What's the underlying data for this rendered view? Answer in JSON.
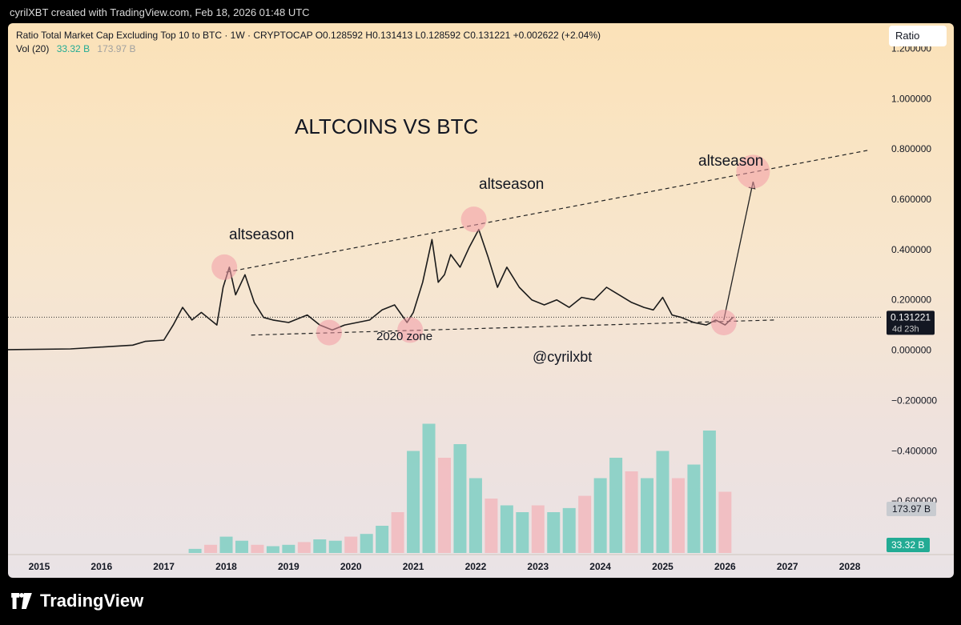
{
  "header": {
    "credit": "cyrilXBT created with TradingView.com, Feb 18, 2026 01:48 UTC"
  },
  "legend": {
    "line1": "Ratio Total Market Cap Excluding Top 10 to BTC · 1W · CRYPTOCAP  O0.128592  H0.131413  L0.128592  C0.131221  +0.002622 (+2.04%)",
    "vol_label": "Vol (20)",
    "vol_value": "33.32 B",
    "vol_ma": "173.97 B"
  },
  "scale_button": "Ratio",
  "brand": {
    "name": "TradingView"
  },
  "colors": {
    "up": "#26a69a",
    "down": "#ef9a9a",
    "text": "#131722",
    "highlight": "#f29aa5"
  },
  "chart_data": {
    "type": "line",
    "ylim": [
      -0.8,
      1.3
    ],
    "ytick_values": [
      1.2,
      1.0,
      0.8,
      0.6,
      0.4,
      0.2,
      0.0,
      -0.2,
      -0.4,
      -0.6
    ],
    "ytick_labels": [
      "1.200000",
      "1.000000",
      "0.800000",
      "0.600000",
      "0.400000",
      "0.200000",
      "0.000000",
      "−0.200000",
      "−0.400000",
      "−0.600000"
    ],
    "xlim": [
      2014.5,
      2028.5
    ],
    "xtick_values": [
      2015,
      2016,
      2017,
      2018,
      2019,
      2020,
      2021,
      2022,
      2023,
      2024,
      2025,
      2026,
      2027,
      2028
    ],
    "xtick_labels": [
      "2015",
      "2016",
      "2017",
      "2018",
      "2019",
      "2020",
      "2021",
      "2022",
      "2023",
      "2024",
      "2025",
      "2026",
      "2027",
      "2028"
    ],
    "price_series": {
      "x": [
        2014.5,
        2015.5,
        2016.5,
        2016.7,
        2017.0,
        2017.15,
        2017.3,
        2017.45,
        2017.6,
        2017.85,
        2017.95,
        2018.05,
        2018.15,
        2018.3,
        2018.45,
        2018.6,
        2018.75,
        2019.0,
        2019.3,
        2019.5,
        2019.7,
        2019.9,
        2020.1,
        2020.3,
        2020.5,
        2020.7,
        2020.9,
        2021.0,
        2021.15,
        2021.3,
        2021.4,
        2021.5,
        2021.6,
        2021.75,
        2021.9,
        2022.05,
        2022.2,
        2022.35,
        2022.5,
        2022.7,
        2022.9,
        2023.1,
        2023.3,
        2023.5,
        2023.7,
        2023.9,
        2024.1,
        2024.3,
        2024.5,
        2024.7,
        2024.85,
        2025.0,
        2025.15,
        2025.3,
        2025.5,
        2025.7,
        2025.85,
        2026.0,
        2026.13
      ],
      "y": [
        0.002,
        0.005,
        0.02,
        0.035,
        0.04,
        0.1,
        0.17,
        0.12,
        0.15,
        0.1,
        0.25,
        0.33,
        0.22,
        0.3,
        0.19,
        0.13,
        0.12,
        0.11,
        0.14,
        0.1,
        0.08,
        0.1,
        0.11,
        0.12,
        0.16,
        0.18,
        0.11,
        0.15,
        0.27,
        0.44,
        0.27,
        0.3,
        0.38,
        0.33,
        0.41,
        0.48,
        0.37,
        0.25,
        0.33,
        0.25,
        0.2,
        0.18,
        0.2,
        0.17,
        0.21,
        0.2,
        0.25,
        0.22,
        0.19,
        0.17,
        0.16,
        0.21,
        0.14,
        0.13,
        0.11,
        0.1,
        0.12,
        0.1,
        0.131221
      ]
    },
    "volume_bars": {
      "x": [
        2017.5,
        2017.75,
        2018.0,
        2018.25,
        2018.5,
        2018.75,
        2019.0,
        2019.25,
        2019.5,
        2019.75,
        2020.0,
        2020.25,
        2020.5,
        2020.75,
        2021.0,
        2021.25,
        2021.5,
        2021.75,
        2022.0,
        2022.25,
        2022.5,
        2022.75,
        2023.0,
        2023.25,
        2023.5,
        2023.75,
        2024.0,
        2024.25,
        2024.5,
        2024.75,
        2025.0,
        2025.25,
        2025.5,
        2025.75,
        2026.0
      ],
      "v": [
        0.03,
        0.06,
        0.12,
        0.09,
        0.06,
        0.05,
        0.06,
        0.08,
        0.1,
        0.09,
        0.12,
        0.14,
        0.2,
        0.3,
        0.75,
        0.95,
        0.7,
        0.8,
        0.55,
        0.4,
        0.35,
        0.3,
        0.35,
        0.3,
        0.33,
        0.42,
        0.55,
        0.7,
        0.6,
        0.55,
        0.75,
        0.55,
        0.65,
        0.9,
        0.45
      ]
    },
    "price_label": "0.131221",
    "countdown": "4d 23h",
    "vol_ma_label": "173.97 B",
    "vol_label": "33.32 B",
    "annotations": {
      "title": "ALTCOINS VS BTC",
      "altseason_1": "altseason",
      "altseason_2": "altseason",
      "altseason_3": "altseason",
      "zone_2020": "2020 zone",
      "handle": "@cyrilxbt"
    },
    "trendlines": [
      {
        "name": "upper",
        "x": [
          2018.0,
          2028.3
        ],
        "y": [
          0.31,
          0.795
        ]
      },
      {
        "name": "lower",
        "x": [
          2018.4,
          2026.8
        ],
        "y": [
          0.06,
          0.12
        ]
      }
    ],
    "highlight_circles": [
      {
        "x": 2017.97,
        "y": 0.33
      },
      {
        "x": 2019.65,
        "y": 0.07
      },
      {
        "x": 2020.95,
        "y": 0.08
      },
      {
        "x": 2021.97,
        "y": 0.52
      },
      {
        "x": 2025.98,
        "y": 0.11
      },
      {
        "x": 2026.45,
        "y": 0.71
      }
    ],
    "projection_arrow": {
      "x": [
        2025.98,
        2026.45
      ],
      "y": [
        0.12,
        0.67
      ]
    }
  }
}
